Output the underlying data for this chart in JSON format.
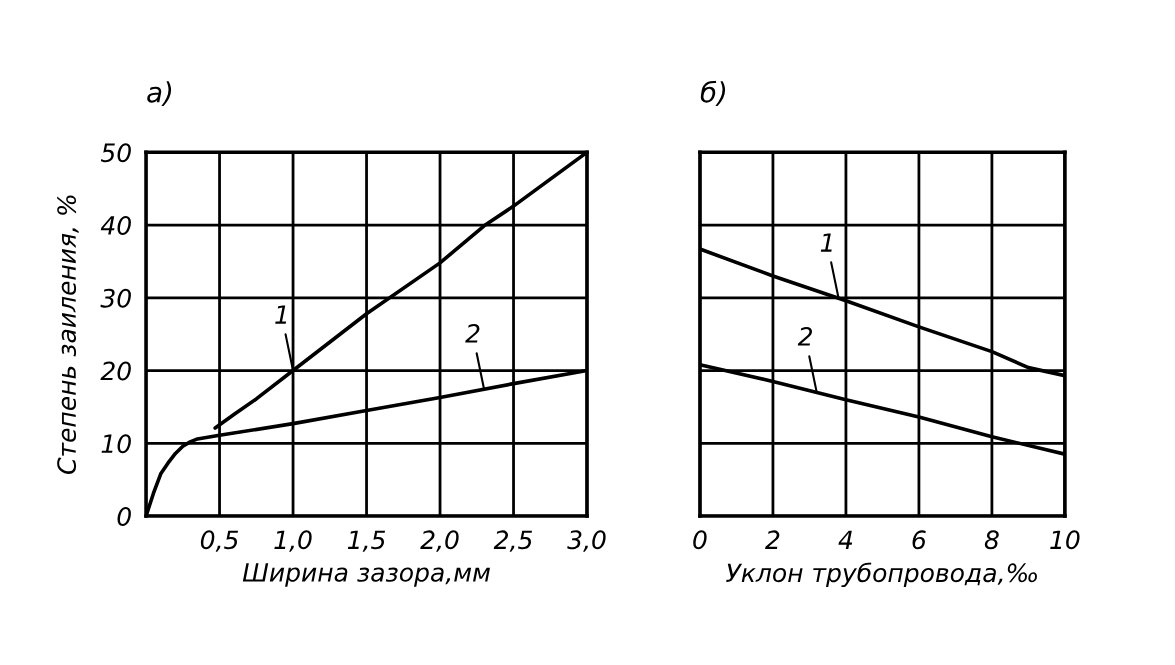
{
  "chart_data": [
    {
      "type": "line",
      "title": "а)",
      "xlabel": "Ширина зазора,мм",
      "ylabel": "Степень заиления, %",
      "xlim": [
        0,
        3.0
      ],
      "ylim": [
        0,
        50
      ],
      "xticks": [
        {
          "value": 0.5,
          "label": "0,5"
        },
        {
          "value": 1.0,
          "label": "1,0"
        },
        {
          "value": 1.5,
          "label": "1,5"
        },
        {
          "value": 2.0,
          "label": "2,0"
        },
        {
          "value": 2.5,
          "label": "2,5"
        },
        {
          "value": 3.0,
          "label": "3,0"
        }
      ],
      "yticks": [
        0,
        10,
        20,
        30,
        40,
        50
      ],
      "grid": true,
      "series": [
        {
          "color": "#000000",
          "x": [
            0.47,
            0.6,
            0.75,
            1.0,
            1.5,
            2.0,
            2.3,
            2.5,
            3.0
          ],
          "values": [
            12.1,
            14.0,
            16.1,
            20,
            27.8,
            34.8,
            39.9,
            42.6,
            50
          ]
        },
        {
          "color": "#000000",
          "x": [
            0,
            0.05,
            0.1,
            0.15,
            0.2,
            0.25,
            0.3,
            0.35,
            0.5,
            1.0,
            1.5,
            2.0,
            2.5,
            3.0
          ],
          "values": [
            0,
            3.1,
            5.8,
            7.3,
            8.6,
            9.6,
            10.2,
            10.6,
            11.1,
            12.7,
            14.5,
            16.3,
            18.2,
            20
          ]
        }
      ],
      "annotations": [
        {
          "text": "1",
          "x": 1.0,
          "y": 20
        },
        {
          "text": "2",
          "x": 2.3,
          "y": 17.4
        }
      ]
    },
    {
      "type": "line",
      "title": "б)",
      "xlabel": "Уклон трубопровода,‰",
      "xlim": [
        0,
        10
      ],
      "ylim": [
        0,
        50
      ],
      "xticks": [
        0,
        2,
        4,
        6,
        8,
        10
      ],
      "yticks": [
        0,
        10,
        20,
        30,
        40,
        50
      ],
      "tick_labels": "x",
      "grid": true,
      "series": [
        {
          "color": "#000000",
          "x": [
            0,
            2,
            4,
            6,
            8,
            9,
            10
          ],
          "values": [
            36.7,
            33.0,
            29.6,
            26.0,
            22.6,
            20.4,
            19.3
          ]
        },
        {
          "color": "#000000",
          "x": [
            0,
            2,
            4,
            6,
            8,
            10
          ],
          "values": [
            20.8,
            18.5,
            16.0,
            13.6,
            10.9,
            8.5
          ]
        }
      ],
      "annotations": [
        {
          "text": "1",
          "x": 3.8,
          "y": 29.9
        },
        {
          "text": "2",
          "x": 3.2,
          "y": 17.0
        }
      ]
    }
  ]
}
